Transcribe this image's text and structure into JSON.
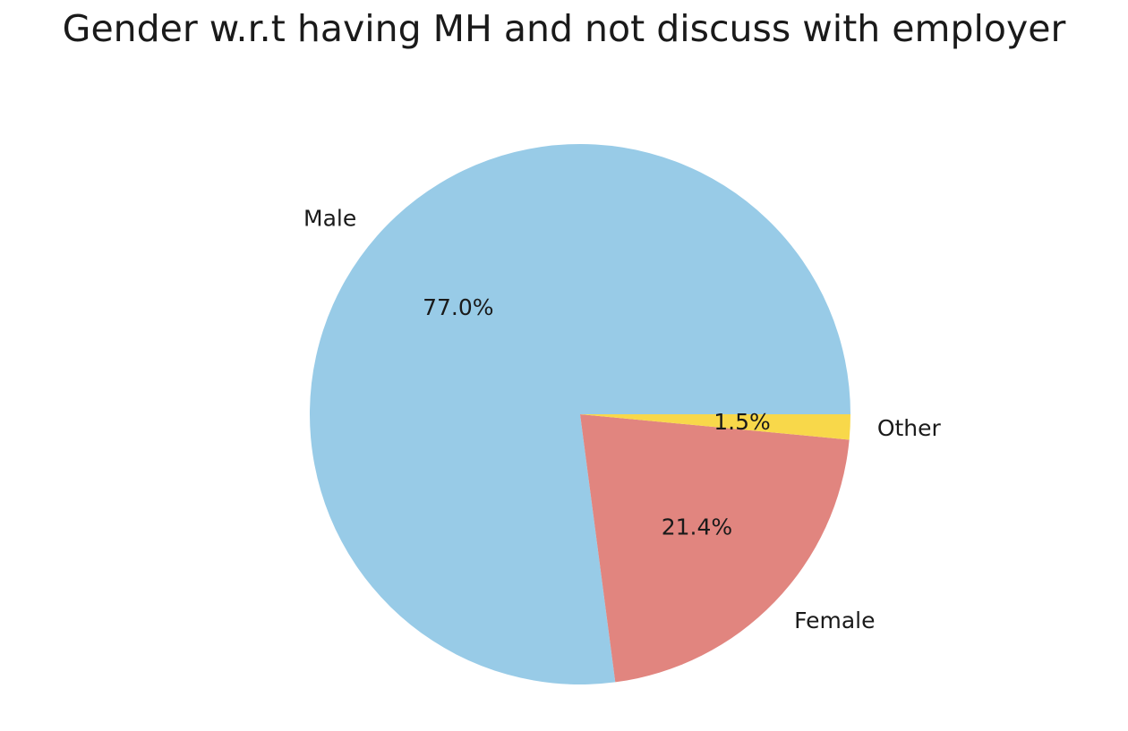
{
  "chart_data": {
    "type": "pie",
    "title": "Gender w.r.t having MH and not discuss with employer",
    "categories": [
      "Male",
      "Female",
      "Other"
    ],
    "values": [
      77.0,
      21.4,
      1.5
    ],
    "value_labels": [
      "77.0%",
      "21.4%",
      "1.5%"
    ],
    "colors": [
      "#98cbe7",
      "#e1857f",
      "#f8d84a"
    ],
    "start_angle_deg": 0,
    "direction": "counterclockwise",
    "legend": "none"
  }
}
